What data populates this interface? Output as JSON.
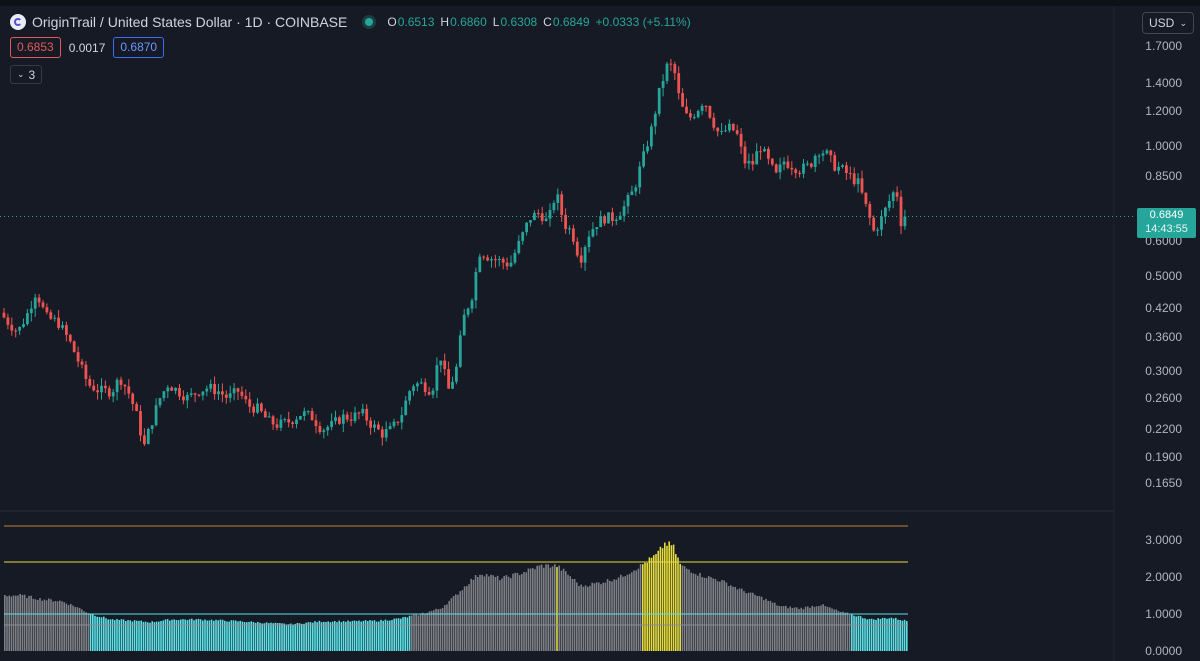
{
  "header": {
    "symbol_title": "OriginTrail / United States Dollar · 1D · COINBASE",
    "open_label": "O",
    "open_value": "0.6513",
    "high_label": "H",
    "high_value": "0.6860",
    "low_label": "L",
    "low_value": "0.6308",
    "close_label": "C",
    "close_value": "0.6849",
    "change": "+0.0333 (+5.11%)"
  },
  "trade": {
    "bid": "0.6853",
    "spread": "0.0017",
    "ask": "0.6870"
  },
  "indicator_toggle": {
    "count": "3"
  },
  "currency_select": {
    "value": "USD"
  },
  "last_price": {
    "value": "0.6849",
    "countdown": "14:43:55"
  },
  "colors": {
    "up": "#26a69a",
    "down": "#ef5350",
    "neutral": "#7d7f86",
    "background": "#161a25",
    "cyan": "#5ce0e6",
    "yellow": "#e6dc3c",
    "orange_line": "#c0803c"
  },
  "chart_data": [
    {
      "type": "candlestick",
      "symbol": "OriginTrail / United States Dollar",
      "interval": "1D",
      "exchange": "COINBASE",
      "yscale": "log",
      "ylim": [
        0.155,
        1.72
      ],
      "y_ticks": [
        "1.7000",
        "1.4000",
        "1.2000",
        "1.0000",
        "0.8500",
        "0.6000",
        "0.5000",
        "0.4200",
        "0.3600",
        "0.3000",
        "0.2600",
        "0.2200",
        "0.1900",
        "0.1650"
      ],
      "y_tick_values": [
        1.7,
        1.4,
        1.2,
        1.0,
        0.85,
        0.6,
        0.5,
        0.42,
        0.36,
        0.3,
        0.26,
        0.22,
        0.19,
        0.165
      ],
      "close_path": [
        [
          0,
          0.41
        ],
        [
          8,
          0.39
        ],
        [
          18,
          0.37
        ],
        [
          28,
          0.41
        ],
        [
          36,
          0.46
        ],
        [
          46,
          0.4
        ],
        [
          58,
          0.39
        ],
        [
          70,
          0.35
        ],
        [
          80,
          0.31
        ],
        [
          88,
          0.28
        ],
        [
          100,
          0.27
        ],
        [
          112,
          0.27
        ],
        [
          120,
          0.29
        ],
        [
          128,
          0.27
        ],
        [
          136,
          0.24
        ],
        [
          144,
          0.2
        ],
        [
          152,
          0.23
        ],
        [
          160,
          0.26
        ],
        [
          168,
          0.28
        ],
        [
          178,
          0.27
        ],
        [
          188,
          0.26
        ],
        [
          198,
          0.27
        ],
        [
          208,
          0.275
        ],
        [
          218,
          0.27
        ],
        [
          228,
          0.26
        ],
        [
          238,
          0.27
        ],
        [
          248,
          0.25
        ],
        [
          258,
          0.245
        ],
        [
          268,
          0.23
        ],
        [
          278,
          0.225
        ],
        [
          290,
          0.23
        ],
        [
          302,
          0.24
        ],
        [
          312,
          0.235
        ],
        [
          322,
          0.22
        ],
        [
          332,
          0.225
        ],
        [
          342,
          0.235
        ],
        [
          352,
          0.235
        ],
        [
          362,
          0.24
        ],
        [
          372,
          0.225
        ],
        [
          382,
          0.215
        ],
        [
          392,
          0.22
        ],
        [
          402,
          0.24
        ],
        [
          412,
          0.28
        ],
        [
          422,
          0.28
        ],
        [
          432,
          0.27
        ],
        [
          440,
          0.33
        ],
        [
          448,
          0.27
        ],
        [
          456,
          0.3
        ],
        [
          464,
          0.4
        ],
        [
          472,
          0.45
        ],
        [
          480,
          0.57
        ],
        [
          490,
          0.55
        ],
        [
          500,
          0.54
        ],
        [
          510,
          0.53
        ],
        [
          520,
          0.6
        ],
        [
          530,
          0.68
        ],
        [
          540,
          0.7
        ],
        [
          548,
          0.66
        ],
        [
          556,
          0.78
        ],
        [
          564,
          0.66
        ],
        [
          572,
          0.63
        ],
        [
          580,
          0.54
        ],
        [
          588,
          0.62
        ],
        [
          596,
          0.66
        ],
        [
          604,
          0.68
        ],
        [
          614,
          0.68
        ],
        [
          624,
          0.72
        ],
        [
          634,
          0.79
        ],
        [
          644,
          0.95
        ],
        [
          652,
          1.1
        ],
        [
          660,
          1.35
        ],
        [
          668,
          1.55
        ],
        [
          674,
          1.5
        ],
        [
          680,
          1.25
        ],
        [
          688,
          1.15
        ],
        [
          696,
          1.2
        ],
        [
          704,
          1.28
        ],
        [
          712,
          1.15
        ],
        [
          720,
          1.05
        ],
        [
          728,
          1.1
        ],
        [
          736,
          1.08
        ],
        [
          744,
          0.92
        ],
        [
          752,
          0.9
        ],
        [
          760,
          1.0
        ],
        [
          768,
          0.92
        ],
        [
          776,
          0.85
        ],
        [
          784,
          0.92
        ],
        [
          792,
          0.9
        ],
        [
          800,
          0.88
        ],
        [
          810,
          0.9
        ],
        [
          818,
          0.98
        ],
        [
          826,
          0.96
        ],
        [
          834,
          0.9
        ],
        [
          842,
          0.88
        ],
        [
          850,
          0.85
        ],
        [
          858,
          0.82
        ],
        [
          866,
          0.72
        ],
        [
          874,
          0.63
        ],
        [
          882,
          0.68
        ],
        [
          890,
          0.75
        ],
        [
          896,
          0.8
        ],
        [
          902,
          0.64
        ],
        [
          906,
          0.6849
        ]
      ],
      "last": 0.6849
    },
    {
      "type": "bar",
      "name": "indicator pane",
      "ylim": [
        0,
        3.4
      ],
      "y_ticks": [
        "3.0000",
        "2.0000",
        "1.0000",
        "0.0000"
      ],
      "y_tick_values": [
        3.0,
        2.0,
        1.0,
        0.0
      ],
      "reference_lines": [
        {
          "value": 3.5,
          "color": "#c0803c"
        },
        {
          "value": 2.4,
          "color": "#e6dc3c"
        },
        {
          "value": 1.0,
          "color": "#5ce0e6"
        },
        {
          "value": 0.7,
          "color": "#8a8d95"
        }
      ],
      "level_path": [
        [
          0,
          1.5
        ],
        [
          20,
          1.5
        ],
        [
          40,
          1.4
        ],
        [
          60,
          1.35
        ],
        [
          75,
          1.2
        ],
        [
          90,
          1.0
        ],
        [
          110,
          0.85
        ],
        [
          130,
          0.82
        ],
        [
          150,
          0.78
        ],
        [
          170,
          0.85
        ],
        [
          200,
          0.85
        ],
        [
          240,
          0.8
        ],
        [
          270,
          0.75
        ],
        [
          290,
          0.72
        ],
        [
          320,
          0.8
        ],
        [
          350,
          0.8
        ],
        [
          380,
          0.82
        ],
        [
          400,
          0.88
        ],
        [
          420,
          1.0
        ],
        [
          440,
          1.15
        ],
        [
          455,
          1.5
        ],
        [
          470,
          1.9
        ],
        [
          480,
          2.1
        ],
        [
          500,
          1.95
        ],
        [
          520,
          2.1
        ],
        [
          540,
          2.3
        ],
        [
          556,
          2.3
        ],
        [
          566,
          2.1
        ],
        [
          580,
          1.75
        ],
        [
          600,
          1.85
        ],
        [
          620,
          2.0
        ],
        [
          640,
          2.3
        ],
        [
          656,
          2.6
        ],
        [
          664,
          2.9
        ],
        [
          672,
          2.85
        ],
        [
          680,
          2.3
        ],
        [
          700,
          2.05
        ],
        [
          720,
          1.9
        ],
        [
          740,
          1.65
        ],
        [
          760,
          1.45
        ],
        [
          780,
          1.2
        ],
        [
          800,
          1.15
        ],
        [
          820,
          1.25
        ],
        [
          840,
          1.05
        ],
        [
          856,
          0.95
        ],
        [
          870,
          0.85
        ],
        [
          890,
          0.9
        ],
        [
          908,
          0.8
        ]
      ],
      "highlight_ranges": [
        {
          "from": 88,
          "to": 120,
          "color": "#5ce0e6"
        },
        {
          "from": 120,
          "to": 410,
          "color": "#5ce0e6"
        },
        {
          "from": 556,
          "to": 558,
          "color": "#e6dc3c"
        },
        {
          "from": 642,
          "to": 680,
          "color": "#e6dc3c"
        },
        {
          "from": 850,
          "to": 908,
          "color": "#5ce0e6"
        }
      ]
    }
  ]
}
